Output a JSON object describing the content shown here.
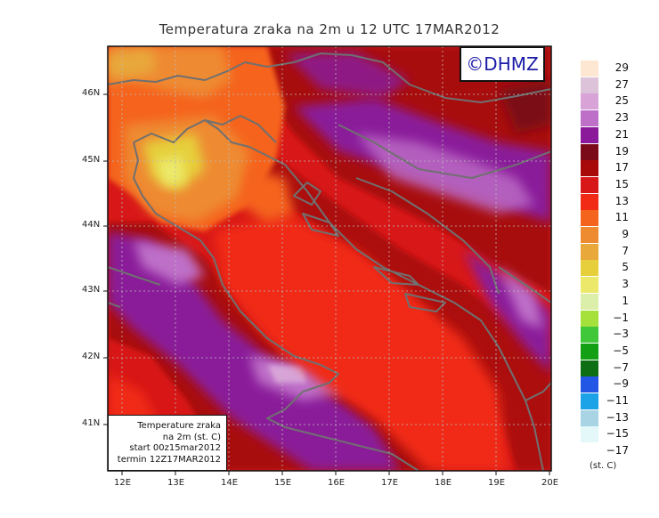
{
  "title": "Temperatura zraka na 2m u 12 UTC 17MAR2012",
  "logo": "©DHMZ",
  "info": {
    "line1": "Temperature zraka",
    "line2": "na 2m (st. C)",
    "line3": "start 00z15mar2012",
    "line4": "termin 12Z17MAR2012"
  },
  "axes": {
    "x_ticks": [
      "12E",
      "13E",
      "14E",
      "15E",
      "16E",
      "17E",
      "18E",
      "19E",
      "20E"
    ],
    "y_ticks": [
      "46N",
      "45N",
      "44N",
      "43N",
      "42N",
      "41N"
    ]
  },
  "legend": {
    "units": "(st. C)",
    "items": [
      {
        "label": "29",
        "color": "#fde6d2"
      },
      {
        "label": "27",
        "color": "#dcc3da"
      },
      {
        "label": "25",
        "color": "#d8a4d8"
      },
      {
        "label": "23",
        "color": "#be6fc8"
      },
      {
        "label": "21",
        "color": "#8a1a9a"
      },
      {
        "label": "19",
        "color": "#7a0a18"
      },
      {
        "label": "17",
        "color": "#a80a0a"
      },
      {
        "label": "15",
        "color": "#d81818"
      },
      {
        "label": "13",
        "color": "#f02a14"
      },
      {
        "label": "11",
        "color": "#f5641c"
      },
      {
        "label": "9",
        "color": "#ee8a30"
      },
      {
        "label": "7",
        "color": "#e8a83a"
      },
      {
        "label": "5",
        "color": "#e6cf3a"
      },
      {
        "label": "3",
        "color": "#ece96a"
      },
      {
        "label": "1",
        "color": "#dcefaa"
      },
      {
        "label": "−1",
        "color": "#a6e03a"
      },
      {
        "label": "−3",
        "color": "#40c83a"
      },
      {
        "label": "−5",
        "color": "#14a014"
      },
      {
        "label": "−7",
        "color": "#0e6e14"
      },
      {
        "label": "−9",
        "color": "#2456e6"
      },
      {
        "label": "−11",
        "color": "#1ca2e6"
      },
      {
        "label": "−13",
        "color": "#a8d4e4"
      },
      {
        "label": "−15",
        "color": "#e4f8fa"
      },
      {
        "label": "−17",
        "color": "#ffffff"
      }
    ]
  }
}
